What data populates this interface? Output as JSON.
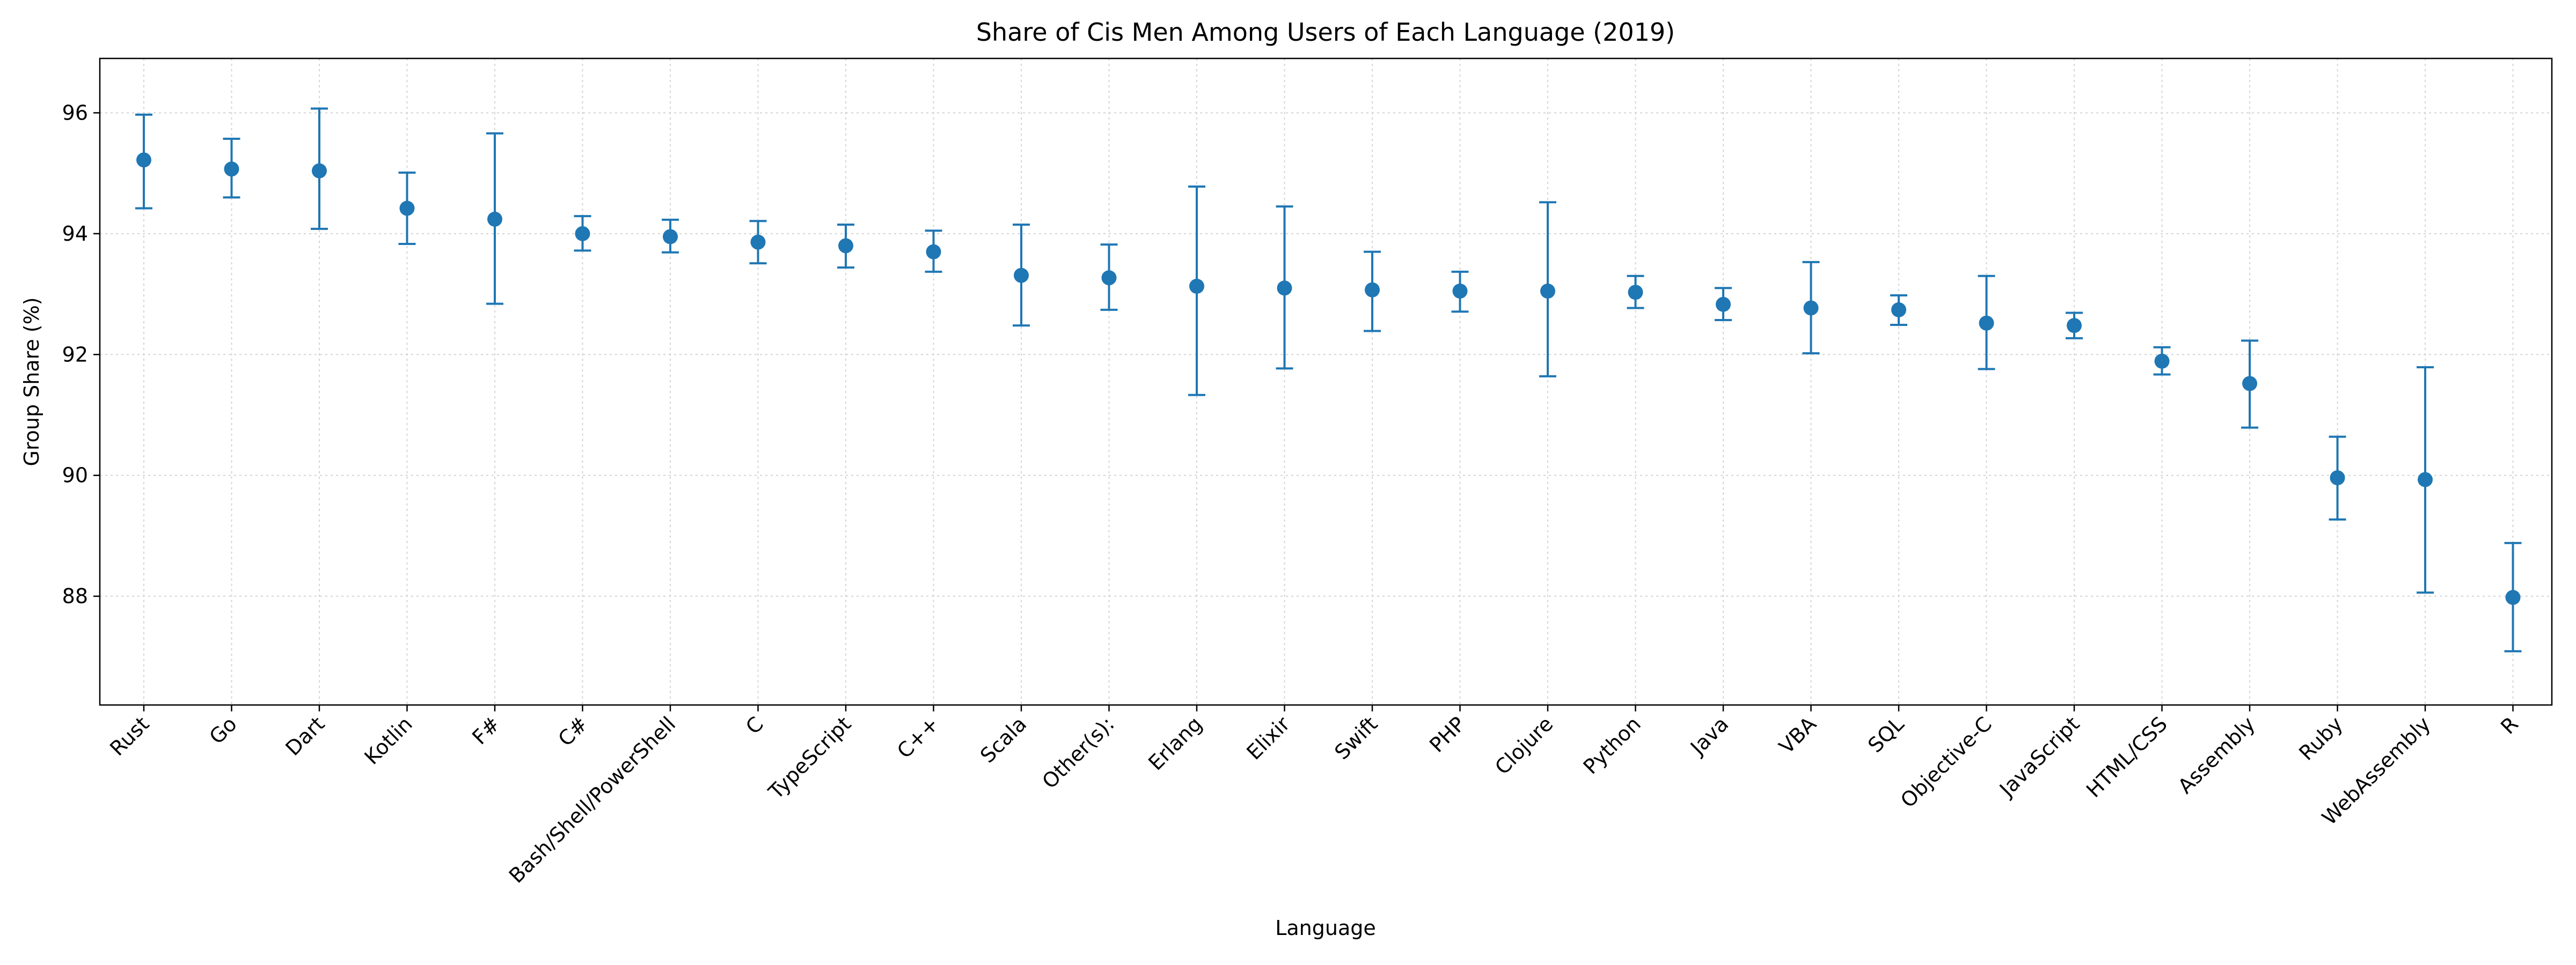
{
  "chart_data": {
    "type": "errorbar",
    "title": "Share of Cis Men Among Users of Each Language (2019)",
    "xlabel": "Language",
    "ylabel": "Group Share (%)",
    "ylim": [
      86.2,
      96.9
    ],
    "yticks": [
      "88",
      "90",
      "92",
      "94",
      "96"
    ],
    "grid": true,
    "series_color": "#1f77b4",
    "categories": [
      "Rust",
      "Go",
      "Dart",
      "Kotlin",
      "F#",
      "C#",
      "Bash/Shell/PowerShell",
      "C",
      "TypeScript",
      "C++",
      "Scala",
      "Other(s):",
      "Erlang",
      "Elixir",
      "Swift",
      "PHP",
      "Clojure",
      "Python",
      "Java",
      "VBA",
      "SQL",
      "Objective-C",
      "JavaScript",
      "HTML/CSS",
      "Assembly",
      "Ruby",
      "WebAssembly",
      "R"
    ],
    "values": [
      95.22,
      95.07,
      95.04,
      94.42,
      94.24,
      94.0,
      93.95,
      93.86,
      93.8,
      93.7,
      93.31,
      93.27,
      93.13,
      93.1,
      93.07,
      93.05,
      93.05,
      93.03,
      92.83,
      92.77,
      92.74,
      92.52,
      92.48,
      91.89,
      91.52,
      89.96,
      89.93,
      87.98
    ],
    "lower": [
      94.42,
      94.6,
      94.08,
      93.83,
      92.84,
      93.72,
      93.69,
      93.51,
      93.44,
      93.37,
      92.48,
      92.74,
      91.33,
      91.77,
      92.39,
      92.71,
      91.64,
      92.77,
      92.57,
      92.02,
      92.49,
      91.76,
      92.27,
      91.67,
      90.79,
      89.27,
      88.06,
      87.09
    ],
    "upper": [
      95.97,
      95.57,
      96.07,
      95.01,
      95.66,
      94.29,
      94.23,
      94.21,
      94.15,
      94.05,
      94.15,
      93.82,
      94.78,
      94.45,
      93.7,
      93.37,
      94.52,
      93.3,
      93.1,
      93.53,
      92.98,
      93.3,
      92.69,
      92.12,
      92.23,
      90.64,
      91.79,
      88.88
    ]
  }
}
